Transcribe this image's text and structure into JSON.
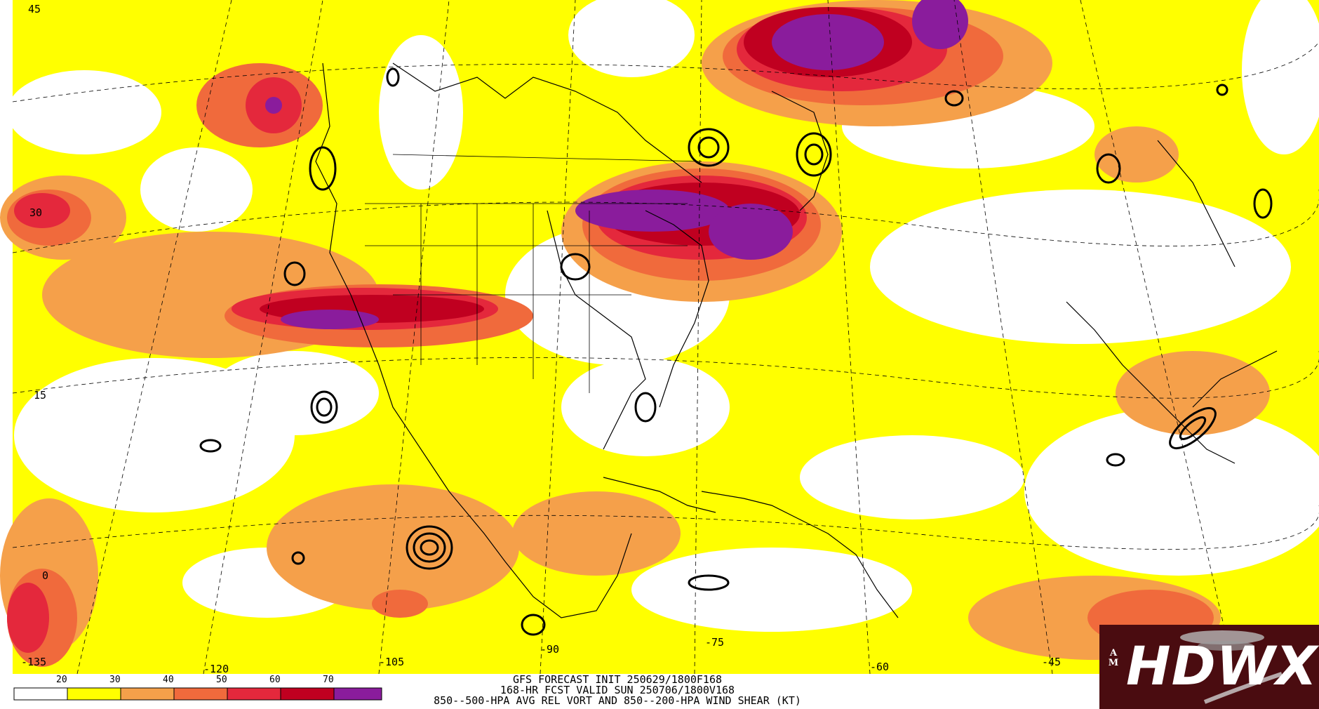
{
  "map": {
    "longitude_labels": [
      "-135",
      "-120",
      "-105",
      "-90",
      "-75",
      "-60",
      "-45"
    ],
    "latitude_labels": [
      "45",
      "30",
      "15",
      "0"
    ]
  },
  "legend": {
    "thresholds": [
      "20",
      "30",
      "40",
      "50",
      "60",
      "70"
    ],
    "colors": [
      "#ffffff",
      "#ffff00",
      "#f5a04a",
      "#f06a3c",
      "#e4283c",
      "#c00020",
      "#8a1c9c"
    ]
  },
  "caption": {
    "line1": "GFS FORECAST INIT 250629/1800F168",
    "line2": "168-HR FCST VALID SUN 250706/1800V168",
    "line3": "850--500-HPA AVG REL VORT AND 850--200-HPA WIND SHEAR (KT)"
  },
  "logo": {
    "text": "HDWX",
    "badge": "A M",
    "colors": {
      "background": "#4a0c10",
      "text": "#ffffff"
    }
  },
  "shading_colors": {
    "yellow": "#ffff00",
    "light_orange": "#f5a04a",
    "orange": "#f06a3c",
    "red": "#e4283c",
    "dark_red": "#c00020",
    "purple": "#8a1c9c"
  }
}
